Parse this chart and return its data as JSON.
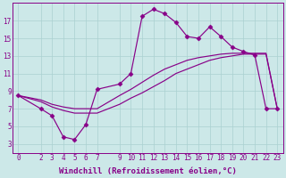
{
  "xlabel": "Windchill (Refroidissement éolien,°C)",
  "bg_color": "#cce8e8",
  "line_color": "#880088",
  "xlim": [
    -0.5,
    23.5
  ],
  "ylim": [
    2.0,
    19.0
  ],
  "xticks": [
    0,
    2,
    3,
    4,
    5,
    6,
    7,
    9,
    10,
    11,
    12,
    13,
    14,
    15,
    16,
    17,
    18,
    19,
    20,
    21,
    22,
    23
  ],
  "yticks": [
    3,
    5,
    7,
    9,
    11,
    13,
    15,
    17
  ],
  "line1_x": [
    0,
    2,
    3,
    4,
    5,
    6,
    7,
    9,
    10,
    11,
    12,
    13,
    14,
    15,
    16,
    17,
    18,
    19,
    20,
    21,
    22,
    23
  ],
  "line1_y": [
    8.5,
    7.0,
    6.2,
    3.8,
    3.5,
    5.2,
    9.2,
    9.8,
    11.0,
    17.5,
    18.3,
    17.8,
    16.8,
    15.2,
    15.0,
    16.3,
    15.2,
    14.0,
    13.5,
    13.1,
    7.0,
    7.0
  ],
  "line2_x": [
    0,
    2,
    3,
    4,
    5,
    6,
    7,
    9,
    10,
    11,
    12,
    13,
    14,
    15,
    16,
    17,
    18,
    19,
    20,
    21,
    22,
    23
  ],
  "line2_y": [
    8.5,
    8.0,
    7.5,
    7.2,
    7.0,
    7.0,
    7.0,
    8.5,
    9.2,
    10.0,
    10.8,
    11.5,
    12.0,
    12.5,
    12.8,
    13.0,
    13.2,
    13.3,
    13.3,
    13.3,
    13.3,
    7.0
  ],
  "line3_x": [
    0,
    2,
    3,
    4,
    5,
    6,
    7,
    9,
    10,
    11,
    12,
    13,
    14,
    15,
    16,
    17,
    18,
    19,
    20,
    21,
    22,
    23
  ],
  "line3_y": [
    8.5,
    7.8,
    7.2,
    6.8,
    6.5,
    6.5,
    6.5,
    7.5,
    8.2,
    8.8,
    9.5,
    10.2,
    11.0,
    11.5,
    12.0,
    12.5,
    12.8,
    13.0,
    13.2,
    13.2,
    13.2,
    7.0
  ],
  "grid_color": "#aad0d0",
  "tick_fontsize": 5.5,
  "xlabel_fontsize": 6.5,
  "marker": "D",
  "markersize": 2.5,
  "linewidth": 0.85
}
